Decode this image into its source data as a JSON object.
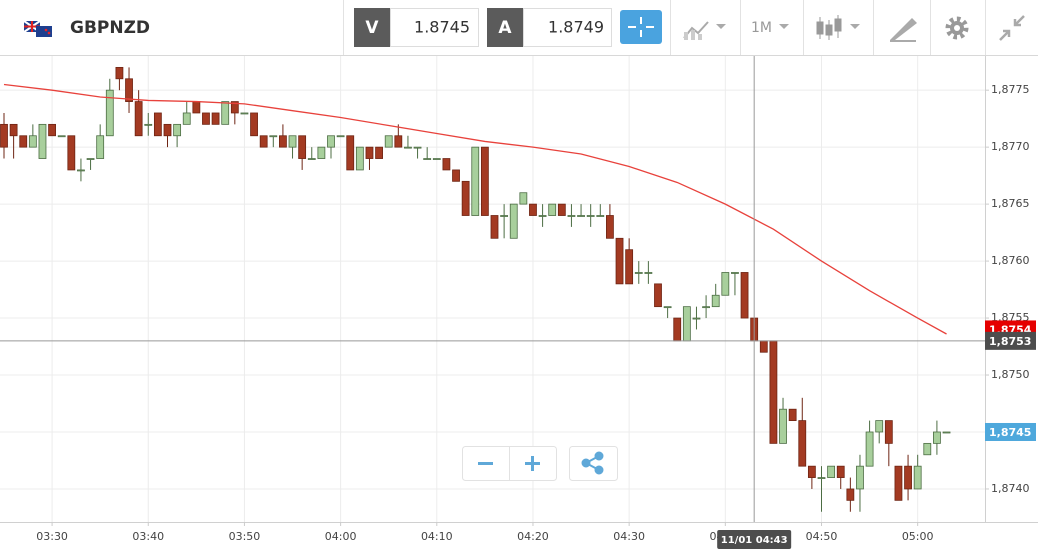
{
  "header": {
    "symbol": "GBPNZD",
    "bid_label": "V",
    "bid": 1.8745,
    "ask_label": "A",
    "ask": 1.8749,
    "timeframe": "1M"
  },
  "chart_data": {
    "type": "candlestick",
    "x": [
      "03:25",
      "03:26",
      "03:27",
      "03:28",
      "03:29",
      "03:30",
      "03:31",
      "03:32",
      "03:33",
      "03:34",
      "03:35",
      "03:36",
      "03:37",
      "03:38",
      "03:39",
      "03:40",
      "03:41",
      "03:42",
      "03:43",
      "03:44",
      "03:45",
      "03:46",
      "03:47",
      "03:48",
      "03:49",
      "03:50",
      "03:51",
      "03:52",
      "03:53",
      "03:54",
      "03:55",
      "03:56",
      "03:57",
      "03:58",
      "03:59",
      "04:00",
      "04:01",
      "04:02",
      "04:03",
      "04:04",
      "04:05",
      "04:06",
      "04:07",
      "04:08",
      "04:09",
      "04:10",
      "04:11",
      "04:12",
      "04:13",
      "04:14",
      "04:15",
      "04:16",
      "04:17",
      "04:18",
      "04:19",
      "04:20",
      "04:21",
      "04:22",
      "04:23",
      "04:24",
      "04:25",
      "04:26",
      "04:27",
      "04:28",
      "04:29",
      "04:30",
      "04:31",
      "04:32",
      "04:33",
      "04:34",
      "04:35",
      "04:36",
      "04:37",
      "04:38",
      "04:39",
      "04:40",
      "04:41",
      "04:42",
      "04:43",
      "04:44",
      "04:45",
      "04:46",
      "04:47",
      "04:48",
      "04:49",
      "04:50",
      "04:51",
      "04:52",
      "04:53",
      "04:54",
      "04:55",
      "04:56",
      "04:57",
      "04:58",
      "04:59",
      "05:00",
      "05:01",
      "05:02",
      "05:03"
    ],
    "open": [
      1.8772,
      1.8772,
      1.8771,
      1.877,
      1.8769,
      1.8772,
      1.8771,
      1.8771,
      1.8768,
      1.8769,
      1.8769,
      1.8771,
      1.8777,
      1.8776,
      1.8774,
      1.8772,
      1.8773,
      1.8772,
      1.8771,
      1.8772,
      1.8774,
      1.8773,
      1.8773,
      1.8772,
      1.8774,
      1.8773,
      1.8773,
      1.8771,
      1.8771,
      1.8771,
      1.877,
      1.8771,
      1.8769,
      1.8769,
      1.877,
      1.8771,
      1.8771,
      1.8768,
      1.877,
      1.877,
      1.877,
      1.8771,
      1.877,
      1.877,
      1.8769,
      1.8769,
      1.8769,
      1.8768,
      1.8767,
      1.8764,
      1.877,
      1.8764,
      1.8764,
      1.8762,
      1.8765,
      1.8765,
      1.8764,
      1.8764,
      1.8765,
      1.8764,
      1.8764,
      1.8764,
      1.8764,
      1.8764,
      1.8762,
      1.8761,
      1.8759,
      1.8759,
      1.8758,
      1.8756,
      1.8755,
      1.8753,
      1.8755,
      1.8756,
      1.8756,
      1.8757,
      1.8759,
      1.8759,
      1.8755,
      1.8753,
      1.8753,
      1.8744,
      1.8747,
      1.8746,
      1.8742,
      1.8741,
      1.8741,
      1.8742,
      1.874,
      1.874,
      1.8742,
      1.8745,
      1.8746,
      1.8742,
      1.8742,
      1.874,
      1.8743,
      1.8744,
      1.8745
    ],
    "high": [
      1.8773,
      1.8772,
      1.8771,
      1.8772,
      1.8772,
      1.8772,
      1.8771,
      1.8771,
      1.8769,
      1.8769,
      1.8772,
      1.8776,
      1.8777,
      1.8777,
      1.8775,
      1.8773,
      1.8773,
      1.8772,
      1.8772,
      1.8774,
      1.8774,
      1.8773,
      1.8773,
      1.8774,
      1.8774,
      1.8773,
      1.8773,
      1.8771,
      1.8771,
      1.8772,
      1.8771,
      1.8771,
      1.877,
      1.877,
      1.8771,
      1.8771,
      1.8771,
      1.877,
      1.877,
      1.877,
      1.8771,
      1.8772,
      1.8771,
      1.877,
      1.877,
      1.8769,
      1.8769,
      1.8768,
      1.8767,
      1.877,
      1.877,
      1.8764,
      1.8765,
      1.8765,
      1.8766,
      1.8765,
      1.8765,
      1.8765,
      1.8765,
      1.8765,
      1.8765,
      1.8765,
      1.8765,
      1.8765,
      1.8762,
      1.8762,
      1.876,
      1.876,
      1.8758,
      1.8756,
      1.8755,
      1.8756,
      1.8756,
      1.8757,
      1.8758,
      1.8759,
      1.8759,
      1.8759,
      1.8755,
      1.8753,
      1.8753,
      1.8748,
      1.8747,
      1.8748,
      1.8742,
      1.8742,
      1.8742,
      1.8742,
      1.8741,
      1.8743,
      1.8746,
      1.8746,
      1.8746,
      1.8742,
      1.8743,
      1.8743,
      1.8744,
      1.8746,
      1.8745
    ],
    "low": [
      1.8769,
      1.8769,
      1.877,
      1.877,
      1.8769,
      1.8771,
      1.8771,
      1.8768,
      1.8767,
      1.8768,
      1.8769,
      1.8771,
      1.8775,
      1.8773,
      1.8771,
      1.8771,
      1.8771,
      1.877,
      1.877,
      1.8772,
      1.8773,
      1.8772,
      1.8772,
      1.8772,
      1.8772,
      1.8773,
      1.8771,
      1.877,
      1.877,
      1.877,
      1.8769,
      1.8768,
      1.8769,
      1.8769,
      1.8769,
      1.8771,
      1.8768,
      1.8768,
      1.8768,
      1.8769,
      1.877,
      1.877,
      1.877,
      1.8769,
      1.8769,
      1.8769,
      1.8768,
      1.8767,
      1.8764,
      1.8764,
      1.8764,
      1.8762,
      1.8762,
      1.8762,
      1.8765,
      1.8764,
      1.8763,
      1.8764,
      1.8764,
      1.8763,
      1.8764,
      1.8763,
      1.8764,
      1.8762,
      1.8758,
      1.8758,
      1.8758,
      1.8758,
      1.8756,
      1.8755,
      1.8753,
      1.8753,
      1.8754,
      1.8755,
      1.8756,
      1.8757,
      1.8757,
      1.8755,
      1.8753,
      1.8752,
      1.8744,
      1.8744,
      1.8746,
      1.8742,
      1.874,
      1.8738,
      1.8741,
      1.874,
      1.8738,
      1.8738,
      1.8742,
      1.8744,
      1.8742,
      1.8739,
      1.8739,
      1.874,
      1.8743,
      1.8743,
      1.8745
    ],
    "close": [
      1.877,
      1.8771,
      1.877,
      1.8771,
      1.8772,
      1.8771,
      1.8771,
      1.8768,
      1.8768,
      1.8769,
      1.8771,
      1.8775,
      1.8776,
      1.8774,
      1.8771,
      1.8772,
      1.8771,
      1.8771,
      1.8772,
      1.8773,
      1.8773,
      1.8772,
      1.8772,
      1.8774,
      1.8773,
      1.8773,
      1.8771,
      1.877,
      1.8771,
      1.877,
      1.8771,
      1.8769,
      1.8769,
      1.877,
      1.8771,
      1.8771,
      1.8768,
      1.877,
      1.8769,
      1.8769,
      1.8771,
      1.877,
      1.877,
      1.877,
      1.8769,
      1.8769,
      1.8768,
      1.8767,
      1.8764,
      1.877,
      1.8764,
      1.8762,
      1.8764,
      1.8765,
      1.8766,
      1.8764,
      1.8764,
      1.8765,
      1.8764,
      1.8764,
      1.8764,
      1.8764,
      1.8764,
      1.8762,
      1.8758,
      1.8758,
      1.8759,
      1.8759,
      1.8756,
      1.8756,
      1.8753,
      1.8756,
      1.8755,
      1.8756,
      1.8757,
      1.8759,
      1.8759,
      1.8755,
      1.8753,
      1.8752,
      1.8744,
      1.8747,
      1.8746,
      1.8742,
      1.8741,
      1.8741,
      1.8742,
      1.8741,
      1.8739,
      1.8742,
      1.8745,
      1.8746,
      1.8744,
      1.8739,
      1.874,
      1.8742,
      1.8744,
      1.8745,
      1.8745
    ],
    "up_color": "#a8cf9c",
    "down_color": "#a33a22",
    "overlay": {
      "color": "#e8423c",
      "x": [
        "03:25",
        "03:30",
        "03:35",
        "03:40",
        "03:45",
        "03:50",
        "03:55",
        "04:00",
        "04:05",
        "04:10",
        "04:15",
        "04:20",
        "04:25",
        "04:30",
        "04:35",
        "04:40",
        "04:45",
        "04:50",
        "04:55",
        "05:00",
        "05:03"
      ],
      "values": [
        1.87755,
        1.8775,
        1.87744,
        1.87741,
        1.8774,
        1.87738,
        1.87732,
        1.87726,
        1.87719,
        1.87712,
        1.87705,
        1.877,
        1.87694,
        1.87683,
        1.87669,
        1.8765,
        1.87628,
        1.876,
        1.87574,
        1.8755,
        1.87536
      ]
    },
    "xlim": [
      "03:25",
      "05:07"
    ],
    "xticks": [
      "03:30",
      "03:40",
      "03:50",
      "04:00",
      "04:10",
      "04:20",
      "04:30",
      "04:40",
      "04:50",
      "05:00"
    ],
    "ylim": [
      1.87371,
      1.8778
    ],
    "yticks": [
      {
        "value": 1.874,
        "label": "1,8740"
      },
      {
        "value": 1.8745,
        "label": "1,8745"
      },
      {
        "value": 1.875,
        "label": "1,8750"
      },
      {
        "value": 1.8755,
        "label": "1,8755"
      },
      {
        "value": 1.876,
        "label": "1,8760"
      },
      {
        "value": 1.8765,
        "label": "1,8765"
      },
      {
        "value": 1.877,
        "label": "1,8770"
      },
      {
        "value": 1.8775,
        "label": "1,8775"
      }
    ],
    "grid": true,
    "ma_tag": {
      "value": 1.8754,
      "label": "1,8754",
      "color": "#e50000"
    },
    "last_price": {
      "value": 1.8745,
      "label": "1,8745",
      "color": "#4ea8dc"
    },
    "crosshair": {
      "time": {
        "value": "04:43",
        "label": "11/01 04:43"
      },
      "price": {
        "value": 1.8753,
        "label": "1,8753"
      },
      "color": "#4d4d4d"
    }
  }
}
